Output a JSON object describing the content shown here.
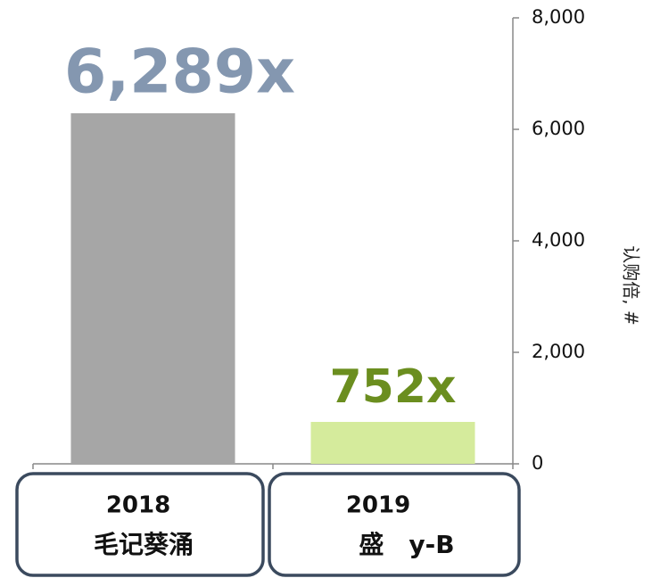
{
  "chart_data": {
    "type": "bar",
    "categories": [
      [
        "2018",
        "毛记葵涌"
      ],
      [
        "2019",
        "盛　y-B"
      ]
    ],
    "series": [
      {
        "values": [
          6289,
          752
        ],
        "value_labels": [
          "6,289x",
          "752x"
        ],
        "colors": [
          "#a6a6a6",
          "#d5eb9c"
        ],
        "label_colors": [
          "#8497b0",
          "#6b8e1f"
        ]
      }
    ],
    "y_label": "认购倍, #",
    "ylim": [
      0,
      8000
    ],
    "yticks": [
      0,
      {
        "value": 2000,
        "label": "2,000"
      },
      {
        "value": 4000,
        "label": "4,000"
      },
      {
        "value": 6000,
        "label": "6,000"
      },
      {
        "value": 8000,
        "label": "8,000"
      }
    ],
    "y_axis_side": "right"
  }
}
